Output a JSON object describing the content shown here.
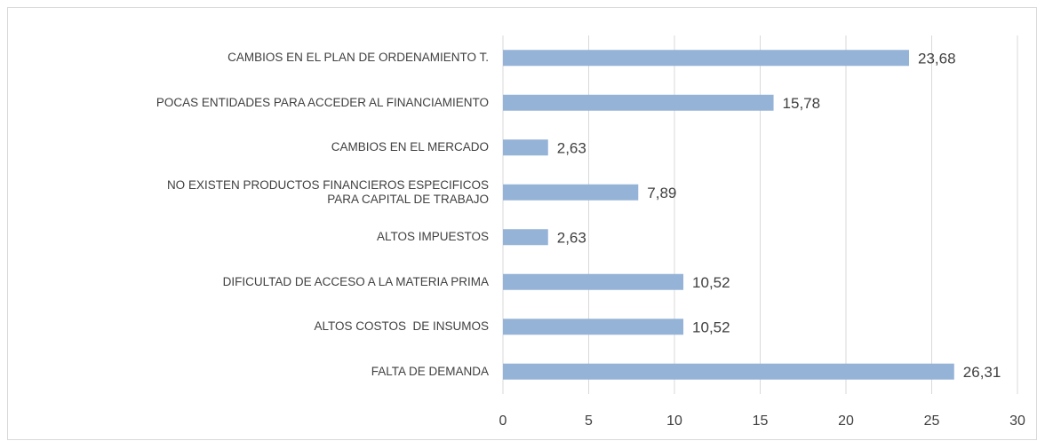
{
  "chart_data": {
    "type": "bar",
    "orientation": "horizontal",
    "categories": [
      "CAMBIOS EN EL PLAN DE ORDENAMIENTO T.",
      "POCAS ENTIDADES PARA ACCEDER AL FINANCIAMIENTO",
      "CAMBIOS EN EL MERCADO",
      "NO EXISTEN PRODUCTOS FINANCIEROS ESPECIFICOS\nPARA CAPITAL DE TRABAJO",
      "ALTOS IMPUESTOS",
      "DIFICULTAD DE ACCESO A LA MATERIA PRIMA",
      "ALTOS COSTOS  DE INSUMOS",
      "FALTA DE DEMANDA"
    ],
    "values": [
      23.68,
      15.78,
      2.63,
      7.89,
      2.63,
      10.52,
      10.52,
      26.31
    ],
    "value_labels": [
      "23,68",
      "15,78",
      "2,63",
      "7,89",
      "2,63",
      "10,52",
      "10,52",
      "26,31"
    ],
    "color": "#95b3d7",
    "xlim": [
      0,
      30
    ],
    "xticks": [
      0,
      5,
      10,
      15,
      20,
      25,
      30
    ],
    "grid": true
  }
}
